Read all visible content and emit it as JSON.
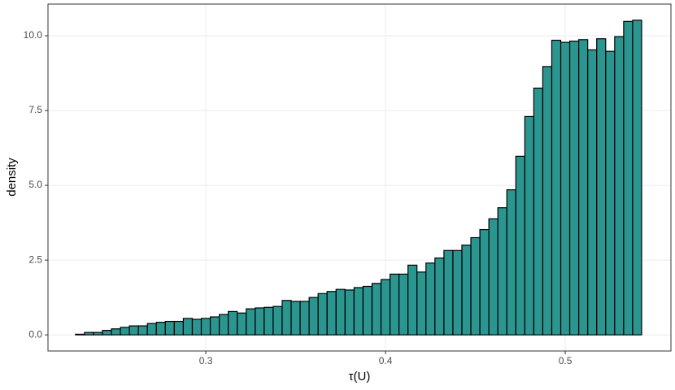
{
  "chart_data": {
    "type": "histogram",
    "xlabel": "τ(U)",
    "ylabel": "density",
    "bins": [
      0.2275,
      0.2325,
      0.2375,
      0.2425,
      0.2475,
      0.2525,
      0.2575,
      0.2625,
      0.2675,
      0.2725,
      0.2775,
      0.2825,
      0.2875,
      0.2925,
      0.2975,
      0.3025,
      0.3075,
      0.3125,
      0.3175,
      0.3225,
      0.3275,
      0.3325,
      0.3375,
      0.3425,
      0.3475,
      0.3525,
      0.3575,
      0.3625,
      0.3675,
      0.3725,
      0.3775,
      0.3825,
      0.3875,
      0.3925,
      0.3975,
      0.4025,
      0.4075,
      0.4125,
      0.4175,
      0.4225,
      0.4275,
      0.4325,
      0.4375,
      0.4425,
      0.4475,
      0.4525,
      0.4575,
      0.4625,
      0.4675,
      0.4725,
      0.4775,
      0.4825,
      0.4875,
      0.4925,
      0.4975,
      0.5025,
      0.5075,
      0.5125,
      0.5175,
      0.5225,
      0.5275,
      0.5325,
      0.5375,
      0.5425
    ],
    "values": [
      0.02,
      0.08,
      0.08,
      0.15,
      0.2,
      0.25,
      0.3,
      0.3,
      0.38,
      0.42,
      0.45,
      0.45,
      0.55,
      0.52,
      0.55,
      0.6,
      0.68,
      0.78,
      0.73,
      0.87,
      0.9,
      0.92,
      0.95,
      1.15,
      1.12,
      1.12,
      1.25,
      1.38,
      1.45,
      1.52,
      1.5,
      1.58,
      1.62,
      1.72,
      1.85,
      2.03,
      2.03,
      2.33,
      2.1,
      2.4,
      2.57,
      2.82,
      2.82,
      3.0,
      3.25,
      3.52,
      3.88,
      4.25,
      4.85,
      5.97,
      7.3,
      8.25,
      8.97,
      9.85,
      9.78,
      9.82,
      9.87,
      9.53,
      9.9,
      9.48,
      9.97,
      10.48,
      10.52
    ],
    "color": "#2b9590",
    "xlim": [
      0.2122,
      0.5588
    ],
    "xticks": [
      0.3,
      0.4,
      0.5
    ],
    "ylim": [
      -0.54,
      11.06
    ],
    "yticks": [
      {
        "value": 0,
        "label": "0.0"
      },
      2.5,
      {
        "value": 5,
        "label": "5.0"
      },
      7.5,
      {
        "value": 10,
        "label": "10.0"
      }
    ],
    "grid": true
  }
}
